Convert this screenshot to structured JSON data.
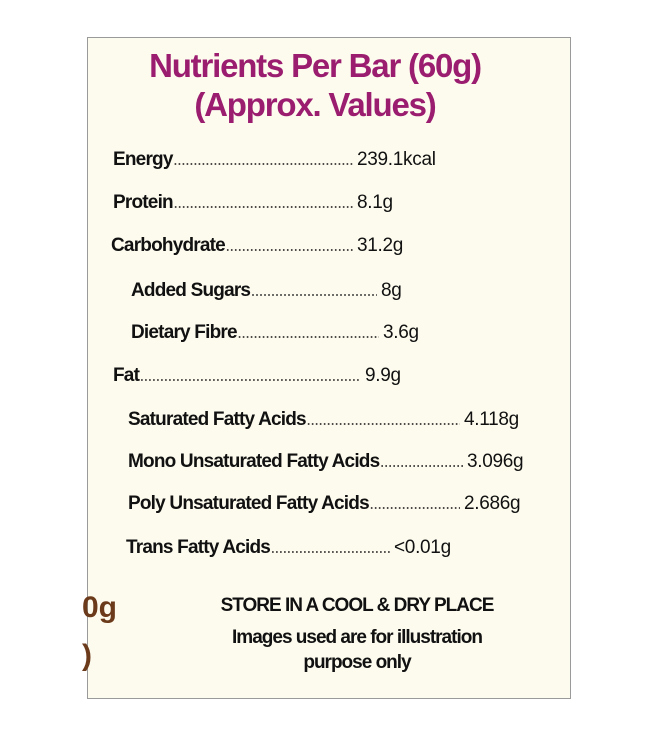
{
  "header": {
    "title_lines": [
      "Nutrients Per Bar (60g)",
      "(Approx. Values)"
    ]
  },
  "nutrients": [
    {
      "label": "Energy",
      "value": "239.1kcal"
    },
    {
      "label": "Protein",
      "value": "8.1g"
    },
    {
      "label": "Carbohydrate",
      "value": "31.2g"
    },
    {
      "label": "Added Sugars",
      "value": "8g"
    },
    {
      "label": "Dietary Fibre",
      "value": "3.6g"
    },
    {
      "label": "Fat",
      "value": "9.9g"
    },
    {
      "label": "Saturated Fatty Acids",
      "value": "4.118g"
    },
    {
      "label": "Mono Unsaturated Fatty Acids",
      "value": "3.096g"
    },
    {
      "label": "Poly Unsaturated Fatty Acids",
      "value": "2.686g"
    },
    {
      "label": "Trans Fatty Acids",
      "value": "<0.01g"
    }
  ],
  "footer": {
    "lines": [
      "STORE IN A COOL & DRY PLACE",
      "Images used are for illustration",
      "purpose only"
    ]
  },
  "edge_fragments": [
    "0g",
    ")"
  ]
}
